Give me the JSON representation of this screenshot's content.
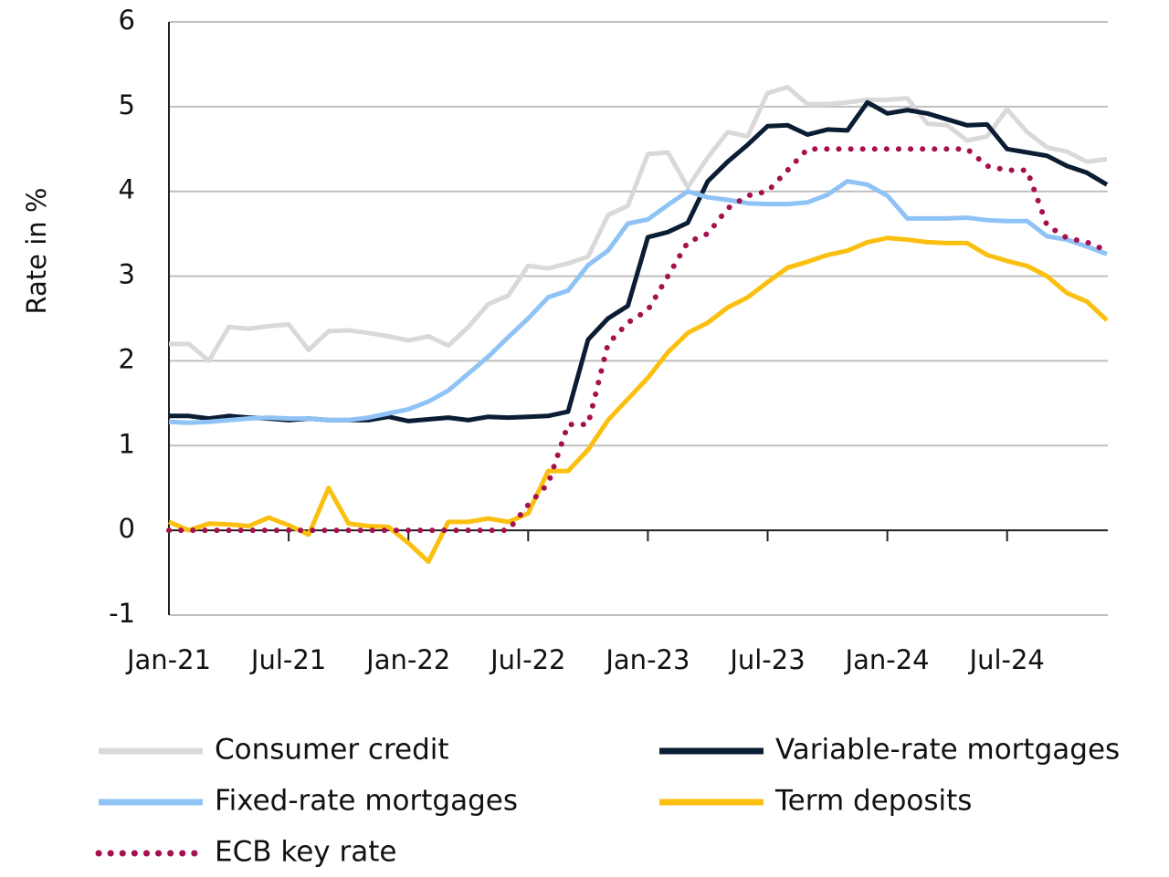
{
  "chart_data": {
    "type": "line",
    "ylabel": "Rate in %",
    "categories": [
      "Jan-21",
      null,
      null,
      null,
      null,
      null,
      "Jul-21",
      null,
      null,
      null,
      null,
      null,
      "Jan-22",
      null,
      null,
      null,
      null,
      null,
      "Jul-22",
      null,
      null,
      null,
      null,
      null,
      "Jan-23",
      null,
      null,
      null,
      null,
      null,
      "Jul-23",
      null,
      null,
      null,
      null,
      null,
      "Jan-24",
      null,
      null,
      null,
      null,
      null,
      "Jul-24",
      null,
      null,
      null,
      null,
      null
    ],
    "ylim": [
      -1,
      6
    ],
    "yticks": [
      -1,
      0,
      1,
      2,
      3,
      4,
      5,
      6
    ],
    "grid": true,
    "series": [
      {
        "name": "Consumer credit",
        "color": "#d9d9d9",
        "style": "solid",
        "values": [
          2.2,
          2.2,
          2.0,
          2.4,
          2.38,
          2.41,
          2.43,
          2.13,
          2.35,
          2.36,
          2.33,
          2.29,
          2.24,
          2.29,
          2.18,
          2.4,
          2.67,
          2.77,
          3.12,
          3.09,
          3.15,
          3.23,
          3.72,
          3.83,
          4.44,
          4.46,
          4.05,
          4.4,
          4.7,
          4.65,
          5.16,
          5.23,
          5.03,
          5.03,
          5.05,
          5.08,
          5.08,
          5.1,
          4.8,
          4.78,
          4.6,
          4.65,
          4.97,
          4.7,
          4.52,
          4.47,
          4.35,
          4.38
        ]
      },
      {
        "name": "Variable-rate mortgages",
        "color": "#0b1d33",
        "style": "solid",
        "values": [
          1.35,
          1.35,
          1.32,
          1.35,
          1.33,
          1.32,
          1.3,
          1.32,
          1.3,
          1.3,
          1.3,
          1.34,
          1.29,
          1.31,
          1.33,
          1.3,
          1.34,
          1.33,
          1.34,
          1.35,
          1.4,
          2.25,
          2.5,
          2.65,
          3.46,
          3.52,
          3.63,
          4.12,
          4.35,
          4.55,
          4.77,
          4.78,
          4.67,
          4.73,
          4.72,
          5.05,
          4.92,
          4.96,
          4.92,
          4.85,
          4.78,
          4.79,
          4.5,
          4.46,
          4.42,
          4.3,
          4.22,
          4.08
        ]
      },
      {
        "name": "Fixed-rate mortgages",
        "color": "#8fc3f5",
        "style": "solid",
        "values": [
          1.28,
          1.27,
          1.28,
          1.3,
          1.32,
          1.33,
          1.32,
          1.32,
          1.3,
          1.3,
          1.33,
          1.38,
          1.43,
          1.52,
          1.65,
          1.85,
          2.05,
          2.28,
          2.5,
          2.75,
          2.83,
          3.13,
          3.3,
          3.62,
          3.67,
          3.84,
          4.0,
          3.93,
          3.9,
          3.86,
          3.85,
          3.85,
          3.87,
          3.96,
          4.12,
          4.08,
          3.95,
          3.68,
          3.68,
          3.68,
          3.69,
          3.66,
          3.65,
          3.65,
          3.47,
          3.43,
          3.35,
          3.26
        ]
      },
      {
        "name": "Term deposits",
        "color": "#fbbf0f",
        "style": "solid",
        "values": [
          0.1,
          0.0,
          0.08,
          0.07,
          0.05,
          0.15,
          0.06,
          -0.05,
          0.5,
          0.08,
          0.05,
          0.04,
          -0.15,
          -0.37,
          0.1,
          0.1,
          0.14,
          0.1,
          0.2,
          0.7,
          0.7,
          0.95,
          1.3,
          1.55,
          1.8,
          2.1,
          2.33,
          2.45,
          2.63,
          2.75,
          2.93,
          3.1,
          3.17,
          3.25,
          3.3,
          3.4,
          3.45,
          3.43,
          3.4,
          3.39,
          3.39,
          3.25,
          3.18,
          3.12,
          3.0,
          2.8,
          2.7,
          2.48
        ]
      },
      {
        "name": "ECB key rate",
        "color": "#a5104f",
        "style": "dotted",
        "values": [
          0,
          0,
          0,
          0,
          0,
          0,
          0,
          0,
          0,
          0,
          0,
          0,
          0,
          0,
          0,
          0,
          0,
          0,
          0.3,
          0.55,
          1.25,
          1.25,
          2.2,
          2.45,
          2.6,
          3.0,
          3.4,
          3.5,
          3.8,
          3.95,
          4.0,
          4.25,
          4.5,
          4.5,
          4.5,
          4.5,
          4.5,
          4.5,
          4.5,
          4.5,
          4.5,
          4.3,
          4.25,
          4.25,
          3.6,
          3.45,
          3.4,
          3.3
        ]
      }
    ]
  }
}
